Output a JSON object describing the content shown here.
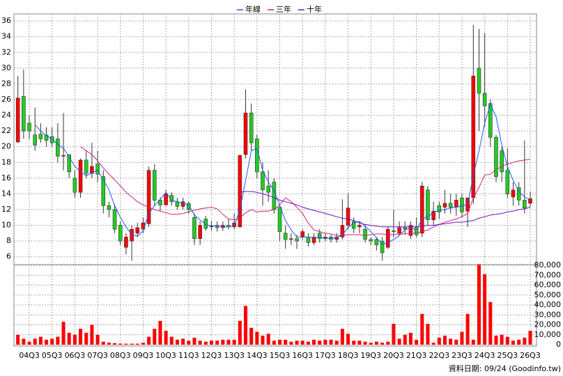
{
  "chart_data": {
    "type": "candlestick",
    "categories": [
      null,
      null,
      "04Q3",
      null,
      null,
      null,
      "05Q3",
      null,
      null,
      null,
      "06Q3",
      null,
      null,
      null,
      "07Q3",
      null,
      null,
      null,
      "08Q3",
      null,
      null,
      null,
      "09Q3",
      null,
      null,
      null,
      "10Q3",
      null,
      null,
      null,
      "11Q3",
      null,
      null,
      null,
      "12Q3",
      null,
      null,
      null,
      "13Q3",
      null,
      null,
      null,
      "14Q3",
      null,
      null,
      null,
      "15Q3",
      null,
      null,
      null,
      "16Q3",
      null,
      null,
      null,
      "17Q3",
      null,
      null,
      null,
      "18Q3",
      null,
      null,
      null,
      "19Q3",
      null,
      null,
      null,
      "20Q3",
      null,
      null,
      null,
      "21Q3",
      null,
      null,
      null,
      "22Q3",
      null,
      null,
      null,
      "23Q3",
      null,
      null,
      null,
      "24Q3",
      null,
      null,
      null,
      "25Q3",
      null,
      null,
      null,
      "26Q3"
    ],
    "open": [
      20.6,
      26.4,
      23,
      21.5,
      21.6,
      21.5,
      21.3,
      21,
      18.8,
      19,
      16,
      14.2,
      18.3,
      16.6,
      17.8,
      16.2,
      12.5,
      12,
      10,
      7.2,
      8,
      9,
      9.5,
      10.2,
      17,
      13.2,
      12.6,
      13.8,
      13,
      12.4,
      12.8,
      11,
      8.3,
      10.8,
      9.8,
      9.9,
      9.7,
      10,
      9.8,
      9.8,
      19,
      24.3,
      21,
      16.8,
      15,
      15.5,
      12.3,
      9,
      8.2,
      8.3,
      8.5,
      8.5,
      7.8,
      9,
      8.3,
      8.5,
      8.2,
      8.5,
      10,
      10.5,
      9.8,
      9.5,
      8.2,
      8.2,
      8,
      7.2,
      9.3,
      9,
      9.7,
      8.7,
      9.8,
      9,
      14.5,
      10.7,
      12.5,
      12.3,
      12.8,
      12.3,
      13.5,
      11.8,
      13.5,
      30,
      26.8,
      25.5,
      21.2,
      19.5,
      17,
      13.6,
      14.8,
      13.2,
      12.8
    ],
    "high": [
      29,
      29.8,
      24,
      25,
      23,
      22.5,
      22.5,
      23,
      24.3,
      19,
      17,
      18.5,
      19.5,
      20.5,
      19.5,
      17,
      13,
      12.7,
      10.5,
      9,
      10,
      10.3,
      11,
      17.5,
      17.8,
      13.5,
      14.5,
      14.2,
      13.5,
      13.5,
      13,
      11.5,
      10.5,
      11.2,
      10.5,
      10.5,
      10.5,
      10.8,
      11.5,
      19,
      27.3,
      25.5,
      21.5,
      18,
      17,
      16,
      12.5,
      10,
      9,
      8.8,
      9.5,
      9,
      9,
      9.5,
      9,
      8.8,
      9,
      13.3,
      14,
      11,
      10.5,
      10,
      8.5,
      8.5,
      8.5,
      9.8,
      12,
      10.5,
      10.5,
      10.5,
      11,
      15.5,
      15,
      13,
      13,
      14.5,
      14,
      14,
      14,
      13.5,
      35.5,
      35,
      34.5,
      26,
      21.5,
      20,
      19.8,
      15.5,
      15.5,
      20.8,
      14.3
    ],
    "low": [
      20.5,
      21,
      21,
      19.5,
      20.5,
      20,
      20,
      18,
      17,
      16,
      13.5,
      13.5,
      16,
      16,
      15.5,
      11.5,
      11,
      9,
      7.5,
      6.3,
      5.5,
      8.5,
      9,
      9.8,
      12.5,
      11.8,
      12.5,
      12.5,
      12,
      12,
      11.5,
      7.5,
      7.5,
      9.3,
      9.3,
      9.2,
      9.3,
      9.5,
      9.5,
      9.7,
      18.5,
      19.5,
      16,
      12.5,
      13,
      11.5,
      8,
      7,
      7.5,
      7,
      8.2,
      7.3,
      7.5,
      7.8,
      8,
      7.8,
      7.8,
      8.2,
      9.5,
      9,
      9,
      7.8,
      7.5,
      6.8,
      5.5,
      7,
      8.5,
      8.7,
      8.8,
      8.3,
      8.5,
      8.5,
      10,
      10,
      10.8,
      11.5,
      11.5,
      11.2,
      11,
      9.8,
      12.7,
      22,
      22.5,
      20,
      15.5,
      15.5,
      13.5,
      12.5,
      12.5,
      11.5,
      12.3
    ],
    "close": [
      26.2,
      22,
      22,
      20.2,
      21,
      20.8,
      20.5,
      18.8,
      18.9,
      16.8,
      14.2,
      18.3,
      16.6,
      17.5,
      16.5,
      12.5,
      12,
      9.5,
      8,
      8.5,
      9.5,
      9.7,
      10.3,
      17,
      13.2,
      12.6,
      14,
      13,
      12.4,
      13,
      12,
      8.3,
      10,
      9.6,
      9.9,
      9.7,
      10,
      9.8,
      10.3,
      18.9,
      24.3,
      20.5,
      16.8,
      14.5,
      14.2,
      12,
      9.2,
      8.2,
      8.3,
      8,
      9.2,
      7.8,
      8.5,
      8.3,
      8.5,
      8.2,
      8.5,
      10,
      12.2,
      9.6,
      10,
      8.2,
      8,
      7.5,
      6.5,
      9.5,
      9.2,
      9.7,
      9.5,
      10,
      8.8,
      15,
      10.7,
      11.8,
      11.7,
      12.8,
      12.3,
      13.2,
      11.7,
      13.5,
      29,
      26.8,
      25.2,
      21.2,
      16.2,
      16.8,
      14,
      14.5,
      13.2,
      12.2,
      13.4
    ],
    "up_color": "#ff0000",
    "down_color": "#22cc22",
    "ylim": [
      5,
      36.9
    ],
    "yticks": [
      6,
      8,
      10,
      12,
      14,
      16,
      18,
      20,
      22,
      24,
      26,
      28,
      30,
      32,
      34,
      36
    ],
    "grid": true,
    "series": [
      {
        "name": "年線",
        "color": "#1e5aff",
        "values": [
          null,
          null,
          null,
          22.8,
          22,
          21.4,
          21,
          20.3,
          19.8,
          18.7,
          17.5,
          16.8,
          16.3,
          16.7,
          17,
          15.8,
          14.5,
          12.5,
          11,
          9.8,
          8.8,
          8.6,
          9.3,
          11.5,
          12.5,
          13.3,
          14.2,
          13.2,
          13,
          12.8,
          12.6,
          11.3,
          10.7,
          10.1,
          9.9,
          10,
          9.8,
          9.8,
          9.9,
          12,
          15.7,
          19.5,
          19.8,
          17,
          15.5,
          14.4,
          12.5,
          10.6,
          9.4,
          8.5,
          8.5,
          8.5,
          8.4,
          8.5,
          8.3,
          8.4,
          8.4,
          8.8,
          9.7,
          10.3,
          10.5,
          9.9,
          9.2,
          8.4,
          7.6,
          7.8,
          8.2,
          8.7,
          9.4,
          9.7,
          9.4,
          10.8,
          11.1,
          11.6,
          11.9,
          12,
          12.2,
          12.3,
          12.5,
          12.6,
          16.3,
          19.5,
          23,
          25.4,
          23.8,
          20.2,
          17.5,
          15.7,
          14.3,
          13.6,
          13.2
        ]
      },
      {
        "name": "三年",
        "color": "#d0207a",
        "values": [
          null,
          null,
          null,
          null,
          null,
          null,
          null,
          null,
          null,
          null,
          null,
          20,
          19.5,
          19,
          18.2,
          17.3,
          16.5,
          15.8,
          15,
          14.2,
          13.6,
          13,
          12.6,
          12.3,
          12,
          11.8,
          11.6,
          11.4,
          11.4,
          11.5,
          11.7,
          11.9,
          12.1,
          12.2,
          12.3,
          12.1,
          11.4,
          10.8,
          10.7,
          10.9,
          11.6,
          12,
          11.7,
          11.8,
          11.8,
          12,
          12.6,
          13.5,
          13,
          12.3,
          11.5,
          10.3,
          9.4,
          9.2,
          9,
          8.9,
          8.7,
          8.7,
          8.8,
          8.8,
          8.8,
          8.7,
          8.8,
          8.9,
          8.9,
          8.8,
          8.8,
          8.9,
          8.9,
          9,
          9,
          9.2,
          9.4,
          9.8,
          10.1,
          10.4,
          10.6,
          10.8,
          11.1,
          11.5,
          13.5,
          14.8,
          16.4,
          16.5,
          17.1,
          17.5,
          17.8,
          18,
          18.2,
          18.3,
          18.4
        ]
      },
      {
        "name": "十年",
        "color": "#6a10c8",
        "values": [
          null,
          null,
          null,
          null,
          null,
          null,
          null,
          null,
          null,
          null,
          null,
          null,
          null,
          null,
          null,
          null,
          null,
          null,
          null,
          null,
          null,
          null,
          null,
          null,
          null,
          null,
          null,
          null,
          null,
          null,
          null,
          null,
          null,
          null,
          null,
          null,
          null,
          null,
          null,
          14.2,
          14.3,
          14.3,
          14.2,
          14,
          13.8,
          13.5,
          13.2,
          13,
          12.8,
          12.6,
          12.3,
          12.1,
          11.9,
          11.7,
          11.5,
          11.3,
          11.1,
          10.9,
          10.8,
          10.6,
          10.3,
          10.1,
          10,
          9.9,
          9.8,
          9.8,
          9.8,
          9.8,
          9.8,
          9.8,
          9.8,
          9.9,
          10,
          10,
          10.1,
          10.2,
          10.3,
          10.4,
          10.4,
          10.5,
          10.6,
          10.9,
          11.1,
          11.3,
          11.4,
          11.5,
          11.7,
          11.8,
          12,
          12.1,
          12.3
        ]
      }
    ],
    "volume": {
      "color": "#ff0000",
      "values": [
        10000,
        6000,
        3000,
        6000,
        8000,
        5000,
        6000,
        8000,
        23000,
        12000,
        10000,
        16000,
        12000,
        20000,
        10000,
        3000,
        2000,
        1500,
        1000,
        1000,
        1000,
        1000,
        2000,
        8000,
        16000,
        24000,
        14000,
        8000,
        5000,
        6000,
        4000,
        7000,
        4000,
        3000,
        4000,
        4000,
        5000,
        5000,
        5000,
        24000,
        39000,
        17000,
        13000,
        9000,
        11000,
        4000,
        5000,
        5000,
        3000,
        4000,
        4000,
        3000,
        5000,
        4000,
        5000,
        5000,
        4000,
        16000,
        11000,
        4000,
        4000,
        3000,
        2000,
        3000,
        2000,
        3000,
        21000,
        6000,
        10000,
        12000,
        5000,
        31000,
        21000,
        2000,
        7000,
        9000,
        6000,
        5000,
        13000,
        31000,
        5000,
        81000,
        71000,
        43000,
        9000,
        10000,
        8000,
        4000,
        5000,
        7000,
        14000
      ],
      "ylim": [
        0,
        80000
      ],
      "yticks": [
        0,
        {
          "value": 10000,
          "label": "10,000"
        },
        {
          "value": 20000,
          "label": "20,000"
        },
        {
          "value": 30000,
          "label": "30,000"
        },
        {
          "value": 40000,
          "label": "40,000"
        },
        {
          "value": 50000,
          "label": "50,000"
        },
        {
          "value": 60000,
          "label": "60,000"
        },
        {
          "value": 70000,
          "label": "70,000"
        },
        {
          "value": 80000,
          "label": "80,000"
        }
      ]
    },
    "footer": "資料日期: 09/24  (Goodinfo.tw)"
  }
}
